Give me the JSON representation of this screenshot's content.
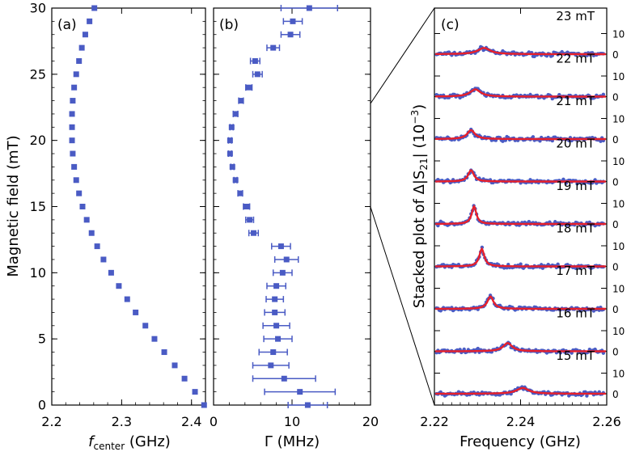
{
  "colors": {
    "marker": "#4a5bc4",
    "fit": "#e8202a",
    "axis": "#000000"
  },
  "chart_data": [
    {
      "panel": "(a)",
      "type": "scatter",
      "xlabel_main": "f",
      "xlabel_sub": "center",
      "xlabel_unit": " (GHz)",
      "ylabel": "Magnetic field (mT)",
      "xlim": [
        2.2,
        2.42
      ],
      "ylim": [
        0,
        30
      ],
      "xticks": [
        "2.2",
        "2.3",
        "2.4"
      ],
      "xtick_values": [
        2.2,
        2.3,
        2.4
      ],
      "yticks": [
        "0",
        "5",
        "10",
        "15",
        "20",
        "25",
        "30"
      ],
      "ytick_values": [
        0,
        5,
        10,
        15,
        20,
        25,
        30
      ],
      "series": [
        {
          "name": "f_center",
          "points": [
            [
              2.418,
              0
            ],
            [
              2.405,
              1
            ],
            [
              2.39,
              2
            ],
            [
              2.376,
              3
            ],
            [
              2.361,
              4
            ],
            [
              2.347,
              5
            ],
            [
              2.334,
              6
            ],
            [
              2.32,
              7
            ],
            [
              2.308,
              8
            ],
            [
              2.296,
              9
            ],
            [
              2.285,
              10
            ],
            [
              2.274,
              11
            ],
            [
              2.265,
              12
            ],
            [
              2.257,
              13
            ],
            [
              2.25,
              14
            ],
            [
              2.244,
              15
            ],
            [
              2.239,
              16
            ],
            [
              2.235,
              17
            ],
            [
              2.232,
              18
            ],
            [
              2.23,
              19
            ],
            [
              2.229,
              20
            ],
            [
              2.229,
              21
            ],
            [
              2.229,
              22
            ],
            [
              2.23,
              23
            ],
            [
              2.232,
              24
            ],
            [
              2.235,
              25
            ],
            [
              2.239,
              26
            ],
            [
              2.243,
              27
            ],
            [
              2.248,
              28
            ],
            [
              2.254,
              29
            ],
            [
              2.261,
              30
            ]
          ]
        }
      ]
    },
    {
      "panel": "(b)",
      "type": "scatter",
      "xlabel": "Γ (MHz)",
      "xlim": [
        0,
        20
      ],
      "ylim": [
        0,
        30
      ],
      "xticks": [
        "0",
        "10",
        "20"
      ],
      "xtick_values": [
        0,
        10,
        20
      ],
      "yticks": [
        "0",
        "5",
        "10",
        "15",
        "20",
        "25",
        "30"
      ],
      "ytick_values": [
        0,
        5,
        10,
        15,
        20,
        25,
        30
      ],
      "series": [
        {
          "name": "Gamma",
          "points": [
            [
              12,
              0,
              2.5
            ],
            [
              11,
              1,
              4.5
            ],
            [
              9,
              2,
              4
            ],
            [
              7.3,
              3,
              2.3
            ],
            [
              7.6,
              4,
              1.8
            ],
            [
              8.2,
              5,
              1.8
            ],
            [
              8,
              6,
              1.7
            ],
            [
              7.8,
              7,
              1.3
            ],
            [
              7.8,
              8,
              1.1
            ],
            [
              8,
              9,
              1.2
            ],
            [
              8.8,
              10,
              1.2
            ],
            [
              9.3,
              11,
              1.5
            ],
            [
              8.6,
              12,
              1.2
            ],
            [
              5.1,
              13,
              0.6
            ],
            [
              4.6,
              14,
              0.5
            ],
            [
              4.2,
              15,
              0.4
            ],
            [
              3.4,
              16,
              0.3
            ],
            [
              2.8,
              17,
              0.2
            ],
            [
              2.4,
              18,
              0.2
            ],
            [
              2.1,
              19,
              0.2
            ],
            [
              2.1,
              20,
              0.2
            ],
            [
              2.3,
              21,
              0.2
            ],
            [
              2.8,
              22,
              0.3
            ],
            [
              3.5,
              23,
              0.3
            ],
            [
              4.5,
              24,
              0.4
            ],
            [
              5.6,
              25,
              0.6
            ],
            [
              5.3,
              26,
              0.6
            ],
            [
              7.6,
              27,
              0.8
            ],
            [
              9.8,
              28,
              1.2
            ],
            [
              10.1,
              29,
              1.2
            ],
            [
              12.2,
              30,
              3.6
            ]
          ]
        }
      ]
    },
    {
      "panel": "(c)",
      "type": "line",
      "xlabel": "Frequency (GHz)",
      "ylabel_prefix": "Stacked plot of Δ|S",
      "ylabel_sub": "21",
      "ylabel_mid": "| (10",
      "ylabel_sup": "−3",
      "ylabel_suffix": ")",
      "xlim": [
        2.22,
        2.26
      ],
      "xticks": [
        "2.22",
        "2.24",
        "2.26"
      ],
      "xtick_values": [
        2.22,
        2.24,
        2.26
      ],
      "right_tick_labels": [
        "10",
        "0"
      ],
      "right_tick_values": [
        10,
        0
      ],
      "traces": [
        {
          "label": "23 mT",
          "center": 2.2315,
          "amp": 3.0,
          "width": 0.0035
        },
        {
          "label": "22 mT",
          "center": 2.2295,
          "amp": 3.5,
          "width": 0.003
        },
        {
          "label": "21 mT",
          "center": 2.2285,
          "amp": 4.3,
          "width": 0.0022
        },
        {
          "label": "20 mT",
          "center": 2.2285,
          "amp": 5.5,
          "width": 0.0016
        },
        {
          "label": "19 mT",
          "center": 2.2292,
          "amp": 8.5,
          "width": 0.0013
        },
        {
          "label": "18 mT",
          "center": 2.231,
          "amp": 8.5,
          "width": 0.0014
        },
        {
          "label": "17 mT",
          "center": 2.233,
          "amp": 6.0,
          "width": 0.0017
        },
        {
          "label": "16 mT",
          "center": 2.237,
          "amp": 4.0,
          "width": 0.0025
        },
        {
          "label": "15 mT",
          "center": 2.2405,
          "amp": 2.8,
          "width": 0.0035
        }
      ]
    }
  ]
}
